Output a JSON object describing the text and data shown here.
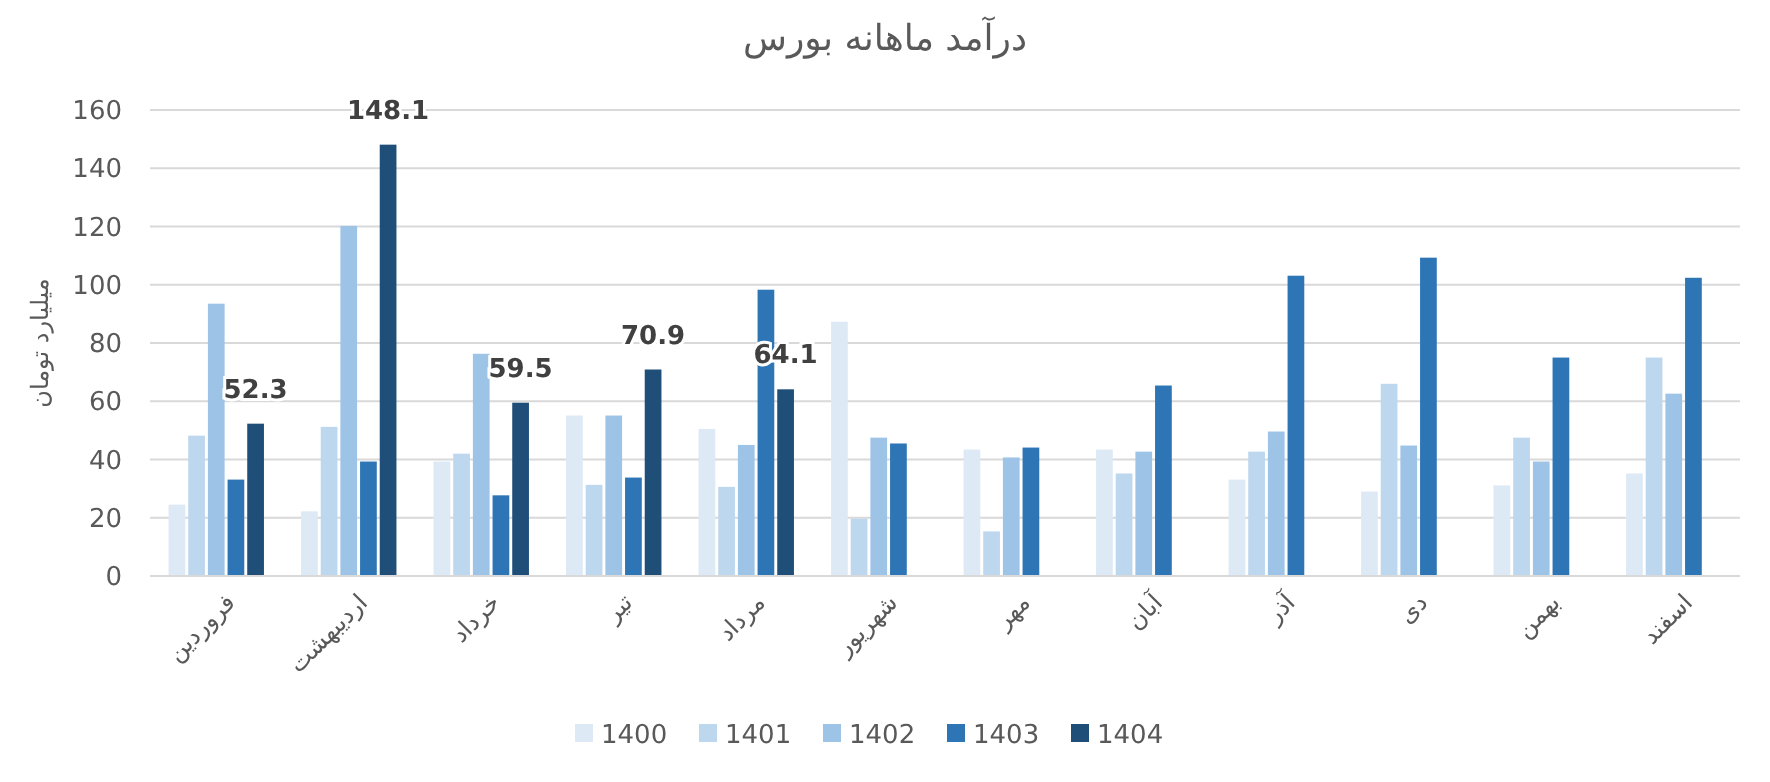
{
  "chart_data": {
    "type": "bar",
    "title": "درآمد ماهانه بورس",
    "ylabel": "میلیارد تومان",
    "categories": [
      "فروردین",
      "اردیبهشت",
      "خرداد",
      "تیر",
      "مرداد",
      "شهریور",
      "مهر",
      "آبان",
      "آذر",
      "دی",
      "بهمن",
      "اسفند"
    ],
    "series": [
      {
        "name": "1400",
        "color": "#dde9f5",
        "values": [
          24.5,
          22.2,
          39.3,
          55.1,
          50.5,
          87.3,
          43.4,
          43.4,
          33.1,
          29,
          31.1,
          35.2
        ]
      },
      {
        "name": "1401",
        "color": "#bdd7ee",
        "values": [
          48.2,
          51.2,
          42,
          31.3,
          30.6,
          19.7,
          15.3,
          35.2,
          42.7,
          66,
          47.5,
          75
        ]
      },
      {
        "name": "1402",
        "color": "#9dc3e6",
        "values": [
          93.5,
          120.2,
          76.3,
          55.1,
          45,
          47.5,
          40.7,
          42.7,
          49.6,
          44.8,
          39.3,
          62.6
        ]
      },
      {
        "name": "1403",
        "color": "#2e75b6",
        "values": [
          33.1,
          39.3,
          27.7,
          33.8,
          98.3,
          45.5,
          44.1,
          65.4,
          103.1,
          109.3,
          75,
          102.4
        ]
      },
      {
        "name": "1404",
        "color": "#1f4e79",
        "values": [
          52.3,
          148.1,
          59.5,
          70.9,
          64.1,
          null,
          null,
          null,
          null,
          null,
          null,
          null
        ],
        "value_labels": [
          "52.3",
          "148.1",
          "59.5",
          "70.9",
          "64.1",
          null,
          null,
          null,
          null,
          null,
          null,
          null
        ]
      }
    ],
    "ylim": [
      0,
      160
    ],
    "yticks": [
      0,
      20,
      40,
      60,
      80,
      100,
      120,
      140,
      160
    ],
    "grid": "y",
    "legend": "bottom"
  }
}
